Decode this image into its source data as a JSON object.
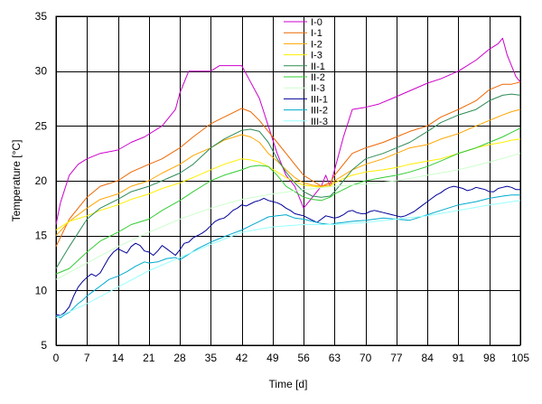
{
  "chart_data": {
    "type": "line",
    "xlabel": "Time [d]",
    "ylabel": "Temperature [°C]",
    "xlim": [
      0,
      105
    ],
    "ylim": [
      5,
      35
    ],
    "xticks": [
      "0",
      "7",
      "14",
      "21",
      "28",
      "35",
      "42",
      "49",
      "56",
      "63",
      "70",
      "77",
      "84",
      "91",
      "98",
      "105"
    ],
    "yticks": [
      "5",
      "10",
      "15",
      "20",
      "25",
      "30",
      "35"
    ],
    "grid": true,
    "legend_position": "top-center",
    "series": [
      {
        "name": "I-0",
        "color": "#cc00cc",
        "x": [
          0,
          1,
          3,
          5,
          7,
          10,
          14,
          17,
          20,
          24,
          27,
          28,
          30,
          32,
          35,
          37,
          40,
          42,
          44,
          46,
          48,
          50,
          52,
          54,
          56,
          58,
          60,
          61,
          62,
          63,
          65,
          67,
          70,
          73,
          76,
          80,
          84,
          87,
          91,
          95,
          98,
          100,
          101,
          102,
          103,
          104,
          105
        ],
        "y": [
          16,
          18,
          20.5,
          21.5,
          22,
          22.5,
          22.8,
          23.5,
          24,
          25,
          26.5,
          28,
          30,
          30,
          30,
          30.5,
          30.5,
          30.5,
          29,
          27.5,
          25,
          22.5,
          20.5,
          19.5,
          17.5,
          18.5,
          19.5,
          20.5,
          19.5,
          21,
          24,
          26.5,
          26.7,
          27,
          27.5,
          28.2,
          28.9,
          29.3,
          30,
          31,
          32,
          32.5,
          33,
          31.5,
          30.5,
          29.5,
          29
        ]
      },
      {
        "name": "I-1",
        "color": "#ee6600",
        "x": [
          0,
          3,
          7,
          10,
          14,
          17,
          21,
          24,
          28,
          31,
          35,
          38,
          42,
          44,
          46,
          48,
          50,
          52,
          54,
          56,
          58,
          60,
          62,
          63,
          65,
          67,
          70,
          74,
          77,
          80,
          84,
          87,
          91,
          95,
          98,
          101,
          103,
          105
        ],
        "y": [
          14,
          16.5,
          18.5,
          19.5,
          20,
          20.8,
          21.5,
          22,
          23,
          24,
          25.2,
          25.8,
          26.6,
          26.3,
          25.5,
          24.5,
          23.5,
          22.5,
          21.5,
          20.5,
          20,
          19.5,
          19.8,
          20.5,
          21.5,
          22.5,
          23,
          23.5,
          24,
          24.5,
          25,
          25.8,
          26.5,
          27.3,
          28.3,
          28.8,
          28.8,
          29
        ]
      },
      {
        "name": "I-2",
        "color": "#ffa500",
        "x": [
          0,
          3,
          7,
          10,
          14,
          17,
          21,
          24,
          28,
          31,
          35,
          38,
          42,
          44,
          46,
          48,
          50,
          52,
          54,
          56,
          58,
          60,
          62,
          63,
          65,
          67,
          70,
          74,
          77,
          80,
          84,
          87,
          91,
          95,
          98,
          101,
          103,
          105
        ],
        "y": [
          15,
          16.3,
          17.5,
          18.3,
          18.8,
          19.5,
          20,
          20.7,
          21.5,
          22.3,
          23,
          23.7,
          24.2,
          24,
          23.5,
          22.5,
          21.8,
          21,
          20.3,
          19.8,
          19.6,
          19.5,
          19.6,
          20,
          20.5,
          21,
          21.5,
          22,
          22.5,
          23,
          23.3,
          23.8,
          24.3,
          25,
          25.5,
          26,
          26.3,
          26.5
        ]
      },
      {
        "name": "I-3",
        "color": "#ffee00",
        "x": [
          0,
          3,
          7,
          10,
          14,
          17,
          21,
          24,
          28,
          31,
          35,
          38,
          42,
          44,
          46,
          48,
          50,
          52,
          54,
          56,
          58,
          60,
          62,
          63,
          65,
          67,
          70,
          74,
          77,
          80,
          84,
          87,
          91,
          95,
          98,
          101,
          103,
          105
        ],
        "y": [
          15.5,
          16.3,
          16.8,
          17.3,
          17.8,
          18.3,
          18.8,
          19.3,
          19.8,
          20.3,
          21,
          21.5,
          22,
          21.9,
          21.7,
          21.3,
          20.8,
          20.3,
          19.9,
          19.6,
          19.5,
          19.4,
          19.5,
          19.8,
          20.2,
          20.5,
          20.8,
          21,
          21.2,
          21.5,
          21.8,
          22,
          22.5,
          23,
          23.3,
          23.5,
          23.7,
          23.8
        ]
      },
      {
        "name": "II-1",
        "color": "#2e8b57",
        "x": [
          0,
          3,
          7,
          10,
          14,
          17,
          21,
          24,
          28,
          31,
          35,
          38,
          42,
          44,
          46,
          48,
          50,
          52,
          54,
          56,
          58,
          60,
          62,
          63,
          65,
          67,
          70,
          74,
          77,
          80,
          84,
          87,
          91,
          95,
          98,
          101,
          103,
          105
        ],
        "y": [
          12,
          14,
          16.5,
          17.5,
          18.3,
          19,
          19.5,
          20,
          20.7,
          21.5,
          23,
          23.8,
          24.6,
          24.7,
          24.5,
          23.5,
          22,
          20.8,
          19.8,
          19,
          18.6,
          18.5,
          18.6,
          19,
          20,
          21,
          22,
          22.5,
          23,
          23.5,
          24.5,
          25.3,
          26,
          26.5,
          27.3,
          27.8,
          27.9,
          27.8
        ]
      },
      {
        "name": "II-2",
        "color": "#33cc33",
        "x": [
          0,
          3,
          7,
          10,
          14,
          17,
          21,
          24,
          28,
          31,
          35,
          38,
          42,
          44,
          46,
          48,
          50,
          52,
          54,
          56,
          58,
          60,
          62,
          63,
          65,
          67,
          70,
          74,
          77,
          80,
          84,
          87,
          91,
          95,
          98,
          101,
          103,
          105
        ],
        "y": [
          11.5,
          12,
          13.5,
          14.5,
          15.3,
          16,
          16.5,
          17.3,
          18.2,
          19,
          20,
          20.5,
          21,
          21.3,
          21.4,
          21.3,
          20.5,
          19.5,
          19,
          18.5,
          18.3,
          18.2,
          18.5,
          18.8,
          19.2,
          19.6,
          20,
          20.3,
          20.5,
          20.8,
          21.3,
          21.8,
          22.5,
          23,
          23.5,
          24,
          24.4,
          24.8
        ]
      },
      {
        "name": "II-3",
        "color": "#ccffcc",
        "x": [
          0,
          7,
          14,
          21,
          28,
          35,
          42,
          49,
          56,
          63,
          70,
          77,
          84,
          91,
          98,
          105
        ],
        "y": [
          11,
          12.5,
          14,
          15.3,
          16.5,
          17.5,
          18.3,
          18.8,
          19.2,
          19.5,
          19.7,
          20,
          20.5,
          21,
          21.7,
          22.5
        ]
      },
      {
        "name": "III-1",
        "color": "#000099",
        "x": [
          0,
          1,
          2,
          3,
          4,
          5,
          6,
          7,
          8,
          9,
          10,
          11,
          12,
          13,
          14,
          15,
          16,
          17,
          18,
          19,
          20,
          21,
          22,
          23,
          24,
          25,
          26,
          27,
          28,
          29,
          30,
          31,
          32,
          33,
          34,
          35,
          36,
          37,
          38,
          39,
          40,
          41,
          42,
          43,
          44,
          45,
          46,
          47,
          48,
          49,
          50,
          51,
          52,
          53,
          54,
          55,
          56,
          57,
          58,
          59,
          60,
          61,
          62,
          63,
          64,
          65,
          66,
          67,
          68,
          69,
          70,
          71,
          72,
          73,
          74,
          75,
          76,
          77,
          78,
          79,
          80,
          81,
          82,
          83,
          84,
          85,
          86,
          87,
          88,
          89,
          90,
          91,
          92,
          93,
          94,
          95,
          96,
          97,
          98,
          99,
          100,
          101,
          102,
          103,
          104,
          105
        ],
        "y": [
          7.8,
          7.7,
          8,
          8.5,
          9.5,
          10.3,
          10.8,
          11.2,
          11.5,
          11.3,
          11.6,
          12.3,
          13,
          13.5,
          13.8,
          13.6,
          13.4,
          14,
          14.3,
          14.1,
          13.6,
          13.5,
          13.2,
          13.6,
          14.1,
          13.8,
          13.5,
          13.2,
          13.7,
          14.3,
          14.4,
          14.8,
          15,
          15.2,
          15.5,
          15.9,
          16.3,
          16.5,
          16.6,
          16.9,
          17.3,
          17.5,
          17.8,
          17.7,
          17.9,
          18.1,
          18.2,
          18.4,
          18.2,
          18.1,
          18,
          17.8,
          17.5,
          17.3,
          17,
          16.9,
          16.8,
          16.6,
          16.4,
          16.2,
          16.5,
          16.8,
          16.7,
          16.6,
          16.7,
          16.9,
          17.2,
          17.3,
          17.1,
          17,
          17,
          17.2,
          17.3,
          17.2,
          17.1,
          17,
          16.9,
          16.8,
          16.7,
          16.8,
          17,
          17.2,
          17.5,
          17.8,
          18.1,
          18.4,
          18.7,
          18.9,
          19.2,
          19.4,
          19.5,
          19.4,
          19.3,
          19.1,
          19.2,
          19.4,
          19.3,
          19.2,
          19,
          19,
          19.3,
          19.4,
          19.5,
          19.4,
          19.2,
          19.2
        ]
      },
      {
        "name": "III-2",
        "color": "#00aacc",
        "x": [
          0,
          1,
          2,
          3,
          4,
          5,
          6,
          7,
          8,
          10,
          12,
          14,
          16,
          18,
          20,
          21,
          23,
          25,
          27,
          28,
          30,
          32,
          35,
          38,
          40,
          42,
          44,
          46,
          48,
          50,
          52,
          54,
          56,
          58,
          60,
          62,
          63,
          65,
          67,
          70,
          74,
          77,
          80,
          84,
          87,
          91,
          95,
          98,
          101,
          103,
          105
        ],
        "y": [
          7.7,
          7.5,
          7.8,
          8,
          8.4,
          8.8,
          9.1,
          9.5,
          9.8,
          10.4,
          11,
          11.3,
          11.7,
          12.2,
          12.6,
          12.5,
          12.6,
          12.9,
          13,
          12.8,
          13.3,
          13.8,
          14.4,
          14.9,
          15.2,
          15.5,
          15.9,
          16.3,
          16.7,
          16.8,
          16.9,
          16.6,
          16.5,
          16.3,
          16.1,
          16,
          16.1,
          16.2,
          16.3,
          16.4,
          16.6,
          16.5,
          16.4,
          16.9,
          17.3,
          17.8,
          18.1,
          18.4,
          18.6,
          18.7,
          18.7
        ]
      },
      {
        "name": "III-3",
        "color": "#99ffff",
        "x": [
          0,
          7,
          14,
          21,
          28,
          35,
          42,
          49,
          56,
          63,
          70,
          77,
          84,
          91,
          98,
          105
        ],
        "y": [
          7.5,
          8.8,
          10.3,
          11.8,
          13,
          14.2,
          15.3,
          15.8,
          16,
          16,
          16.2,
          16.5,
          16.8,
          17.3,
          17.8,
          18.2
        ]
      }
    ]
  }
}
